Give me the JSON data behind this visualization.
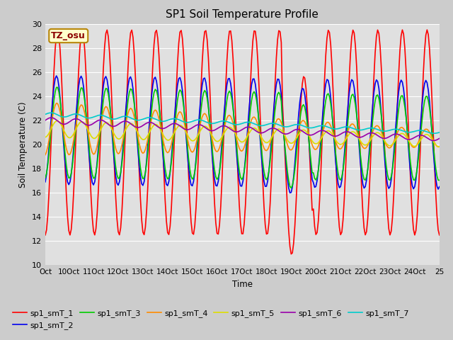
{
  "title": "SP1 Soil Temperature Profile",
  "xlabel": "Time",
  "ylabel": "Soil Temperature (C)",
  "ylim": [
    10,
    30
  ],
  "yticks": [
    10,
    12,
    14,
    16,
    18,
    20,
    22,
    24,
    26,
    28,
    30
  ],
  "annotation_text": "TZ_osu",
  "annotation_color": "#8B0000",
  "annotation_bg": "#FFFFCC",
  "annotation_border": "#B8860B",
  "fig_bg_color": "#CCCCCC",
  "plot_bg": "#E0E0E0",
  "legend_labels": [
    "sp1_smT_1",
    "sp1_smT_2",
    "sp1_smT_3",
    "sp1_smT_4",
    "sp1_smT_5",
    "sp1_smT_6",
    "sp1_smT_7"
  ],
  "line_colors": [
    "#FF0000",
    "#0000EE",
    "#00CC00",
    "#FF8C00",
    "#DDDD00",
    "#9900AA",
    "#00CCCC"
  ],
  "tick_labels": [
    "Oct",
    "10Oct",
    "11Oct",
    "12Oct",
    "13Oct",
    "14Oct",
    "15Oct",
    "16Oct",
    "17Oct",
    "18Oct",
    "19Oct",
    "20Oct",
    "21Oct",
    "22Oct",
    "23Oct",
    "24Oct",
    "25"
  ],
  "n_cycles": 16,
  "n_points": 320
}
